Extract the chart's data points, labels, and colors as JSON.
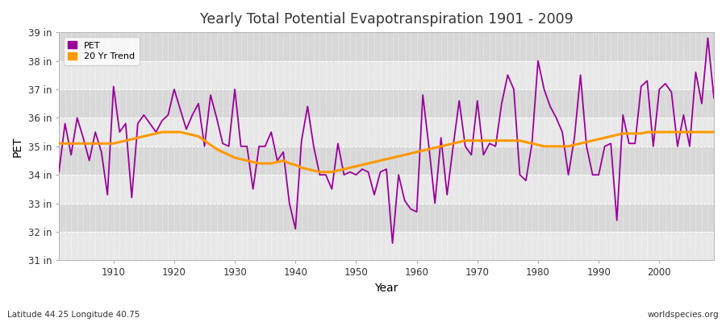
{
  "title": "Yearly Total Potential Evapotranspiration 1901 - 2009",
  "xlabel": "Year",
  "ylabel": "PET",
  "subtitle_left": "Latitude 44.25 Longitude 40.75",
  "subtitle_right": "worldspecies.org",
  "ylim": [
    31,
    39
  ],
  "yticks": [
    31,
    32,
    33,
    34,
    35,
    36,
    37,
    38,
    39
  ],
  "ytick_labels": [
    "31 in",
    "32 in",
    "33 in",
    "34 in",
    "35 in",
    "36 in",
    "37 in",
    "38 in",
    "39 in"
  ],
  "pet_color": "#990099",
  "trend_color": "#ff9900",
  "bg_color": "#ffffff",
  "plot_bg_color": "#e8e8e8",
  "band_color_dark": "#d8d8d8",
  "band_color_light": "#e8e8e8",
  "years": [
    1901,
    1902,
    1903,
    1904,
    1905,
    1906,
    1907,
    1908,
    1909,
    1910,
    1911,
    1912,
    1913,
    1914,
    1915,
    1916,
    1917,
    1918,
    1919,
    1920,
    1921,
    1922,
    1923,
    1924,
    1925,
    1926,
    1927,
    1928,
    1929,
    1930,
    1931,
    1932,
    1933,
    1934,
    1935,
    1936,
    1937,
    1938,
    1939,
    1940,
    1941,
    1942,
    1943,
    1944,
    1945,
    1946,
    1947,
    1948,
    1949,
    1950,
    1951,
    1952,
    1953,
    1954,
    1955,
    1956,
    1957,
    1958,
    1959,
    1960,
    1961,
    1962,
    1963,
    1964,
    1965,
    1966,
    1967,
    1968,
    1969,
    1970,
    1971,
    1972,
    1973,
    1974,
    1975,
    1976,
    1977,
    1978,
    1979,
    1980,
    1981,
    1982,
    1983,
    1984,
    1985,
    1986,
    1987,
    1988,
    1989,
    1990,
    1991,
    1992,
    1993,
    1994,
    1995,
    1996,
    1997,
    1998,
    1999,
    2000,
    2001,
    2002,
    2003,
    2004,
    2005,
    2006,
    2007,
    2008,
    2009
  ],
  "pet": [
    34.1,
    35.8,
    34.7,
    36.0,
    35.3,
    34.5,
    35.5,
    34.8,
    33.3,
    37.1,
    35.5,
    35.8,
    33.2,
    35.8,
    36.1,
    35.8,
    35.5,
    35.9,
    36.1,
    37.0,
    36.3,
    35.6,
    36.1,
    36.5,
    35.0,
    36.8,
    36.0,
    35.1,
    35.0,
    37.0,
    35.0,
    35.0,
    33.5,
    35.0,
    35.0,
    35.5,
    34.5,
    34.8,
    33.0,
    32.1,
    35.2,
    36.4,
    35.0,
    34.0,
    34.0,
    33.5,
    35.1,
    34.0,
    34.1,
    34.0,
    34.2,
    34.1,
    33.3,
    34.1,
    34.2,
    31.6,
    34.0,
    33.1,
    32.8,
    32.7,
    36.8,
    35.0,
    33.0,
    35.3,
    33.3,
    35.0,
    36.6,
    35.0,
    34.7,
    36.6,
    34.7,
    35.1,
    35.0,
    36.5,
    37.5,
    37.0,
    34.0,
    33.8,
    35.1,
    38.0,
    37.0,
    36.4,
    36.0,
    35.5,
    34.0,
    35.3,
    37.5,
    35.0,
    34.0,
    34.0,
    35.0,
    35.1,
    32.4,
    36.1,
    35.1,
    35.1,
    37.1,
    37.3,
    35.0,
    37.0,
    37.2,
    36.9,
    35.0,
    36.1,
    35.0,
    37.6,
    36.5,
    38.8,
    36.7
  ],
  "trend": [
    35.1,
    35.1,
    35.1,
    35.1,
    35.1,
    35.1,
    35.1,
    35.1,
    35.1,
    35.1,
    35.15,
    35.2,
    35.25,
    35.3,
    35.35,
    35.4,
    35.45,
    35.5,
    35.5,
    35.5,
    35.5,
    35.45,
    35.4,
    35.35,
    35.2,
    35.05,
    34.9,
    34.8,
    34.7,
    34.6,
    34.55,
    34.5,
    34.45,
    34.4,
    34.4,
    34.4,
    34.45,
    34.5,
    34.4,
    34.35,
    34.25,
    34.2,
    34.15,
    34.1,
    34.1,
    34.1,
    34.15,
    34.2,
    34.25,
    34.3,
    34.35,
    34.4,
    34.45,
    34.5,
    34.55,
    34.6,
    34.65,
    34.7,
    34.75,
    34.8,
    34.85,
    34.9,
    34.95,
    35.0,
    35.05,
    35.1,
    35.15,
    35.2,
    35.2,
    35.2,
    35.2,
    35.2,
    35.2,
    35.2,
    35.2,
    35.2,
    35.2,
    35.15,
    35.1,
    35.05,
    35.0,
    35.0,
    35.0,
    35.0,
    35.0,
    35.05,
    35.1,
    35.15,
    35.2,
    35.25,
    35.3,
    35.35,
    35.4,
    35.45,
    35.45,
    35.45,
    35.45,
    35.5,
    35.5,
    35.5,
    35.5,
    35.5,
    35.5,
    35.5,
    35.5,
    35.5,
    35.5,
    35.5,
    35.5
  ]
}
